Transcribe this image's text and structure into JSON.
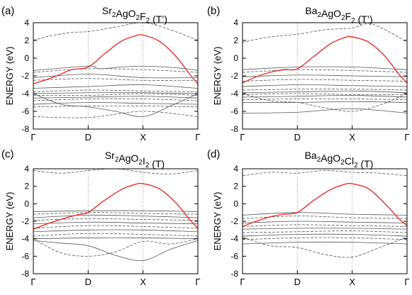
{
  "figure": {
    "panels": [
      {
        "tag": "(a)",
        "title": {
          "base1": "Sr",
          "sub1": "2",
          "base2": "AgO",
          "sub2": "2",
          "base3": "F",
          "sub3": "2",
          "suffix": " (T’)"
        }
      },
      {
        "tag": "(b)",
        "title": {
          "base1": "Ba",
          "sub1": "2",
          "base2": "AgO",
          "sub2": "2",
          "base3": "F",
          "sub3": "2",
          "suffix": " (T’)"
        }
      },
      {
        "tag": "(c)",
        "title": {
          "base1": "Sr",
          "sub1": "2",
          "base2": "AgO",
          "sub2": "2",
          "base3": "I",
          "sub3": "2",
          "suffix": " (T)"
        }
      },
      {
        "tag": "(d)",
        "title": {
          "base1": "Ba",
          "sub1": "2",
          "base2": "AgO",
          "sub2": "2",
          "base3": "Cl",
          "sub3": "2",
          "suffix": " (T)"
        }
      }
    ]
  },
  "colors": {
    "highlight_band": "#e8312a",
    "other_bands": "#555555",
    "axis": "#000000",
    "kpoint_line": "#9a9a9a"
  },
  "chart_data": [
    {
      "type": "line",
      "title": "Sr2AgO2F2 (T’)",
      "ylabel": "ENERGY (eV)",
      "ylim": [
        -8,
        4
      ],
      "yticks": [
        -8,
        -6,
        -4,
        -2,
        0,
        2,
        4
      ],
      "xticks": [
        "Γ",
        "D",
        "X",
        "Γ"
      ],
      "highlight_band": {
        "x": [
          0,
          0.25,
          0.5,
          0.7,
          1,
          1.3,
          1.6,
          1.85,
          2,
          2.3,
          2.6,
          2.85,
          3
        ],
        "y": [
          -2.9,
          -2.4,
          -1.8,
          -1.3,
          -1.0,
          0.5,
          1.9,
          2.5,
          2.6,
          1.9,
          0.2,
          -1.8,
          -2.9
        ]
      },
      "bands": [
        {
          "x": [
            0,
            0.3,
            0.7,
            1,
            1.5,
            2,
            2.5,
            3
          ],
          "y": [
            2.0,
            2.5,
            2.9,
            3.0,
            3.5,
            4.0,
            3.2,
            2.0
          ]
        },
        {
          "x": [
            0,
            1,
            1.2,
            1.6,
            2,
            2.4,
            2.8,
            3
          ],
          "y": [
            -1.4,
            -0.9,
            -1.2,
            -1.0,
            -0.9,
            -1.0,
            -1.2,
            -1.4
          ]
        },
        {
          "x": [
            0,
            1,
            2,
            3
          ],
          "y": [
            -1.6,
            -1.2,
            -1.3,
            -1.6
          ]
        },
        {
          "x": [
            0,
            1,
            2,
            3
          ],
          "y": [
            -2.2,
            -1.8,
            -2.2,
            -2.2
          ]
        },
        {
          "x": [
            0,
            1,
            2,
            3
          ],
          "y": [
            -2.5,
            -2.3,
            -2.5,
            -2.5
          ]
        },
        {
          "x": [
            0,
            1,
            2,
            3
          ],
          "y": [
            -3.4,
            -3.2,
            -3.0,
            -3.4
          ]
        },
        {
          "x": [
            0,
            1,
            2,
            3
          ],
          "y": [
            -3.8,
            -3.6,
            -3.7,
            -3.8
          ]
        },
        {
          "x": [
            0,
            1,
            2,
            3
          ],
          "y": [
            -4.0,
            -3.9,
            -3.9,
            -4.0
          ]
        },
        {
          "x": [
            0,
            1,
            2,
            3
          ],
          "y": [
            -4.2,
            -4.2,
            -4.0,
            -4.2
          ]
        },
        {
          "x": [
            0,
            1,
            2,
            3
          ],
          "y": [
            -4.5,
            -4.4,
            -4.3,
            -4.5
          ]
        },
        {
          "x": [
            0,
            1,
            2,
            3
          ],
          "y": [
            -4.8,
            -4.6,
            -4.6,
            -4.8
          ]
        },
        {
          "x": [
            0,
            1,
            2,
            3
          ],
          "y": [
            -5.2,
            -5.0,
            -5.1,
            -5.2
          ]
        },
        {
          "x": [
            0,
            1,
            2,
            3
          ],
          "y": [
            -5.5,
            -5.4,
            -5.4,
            -5.5
          ]
        },
        {
          "x": [
            0,
            0.5,
            1,
            1.5,
            2,
            2.5,
            3
          ],
          "y": [
            -4.0,
            -5.2,
            -5.5,
            -6.0,
            -6.6,
            -5.4,
            -4.0
          ]
        },
        {
          "x": [
            0,
            1,
            2,
            3
          ],
          "y": [
            -6.6,
            -6.7,
            -6.0,
            -6.6
          ]
        }
      ]
    },
    {
      "type": "line",
      "title": "Ba2AgO2F2 (T’)",
      "ylabel": "ENERGY (eV)",
      "ylim": [
        -8,
        4
      ],
      "yticks": [
        -8,
        -6,
        -4,
        -2,
        0,
        2,
        4
      ],
      "xticks": [
        "Γ",
        "D",
        "X",
        "Γ"
      ],
      "highlight_band": {
        "x": [
          0,
          0.25,
          0.5,
          0.75,
          1,
          1.3,
          1.6,
          1.85,
          2,
          2.3,
          2.6,
          2.85,
          3
        ],
        "y": [
          -2.8,
          -2.1,
          -1.6,
          -1.3,
          -1.2,
          0.2,
          1.6,
          2.3,
          2.4,
          1.8,
          0.2,
          -1.8,
          -2.8
        ]
      },
      "bands": [
        {
          "x": [
            0,
            0.5,
            1,
            1.5,
            2,
            2.3,
            2.6,
            3
          ],
          "y": [
            1.8,
            2.4,
            2.7,
            3.2,
            3.4,
            3.9,
            3.2,
            1.8
          ]
        },
        {
          "x": [
            0,
            1,
            2,
            3
          ],
          "y": [
            -1.3,
            -1.0,
            -1.0,
            -1.3
          ]
        },
        {
          "x": [
            0,
            1,
            2,
            3
          ],
          "y": [
            -1.6,
            -1.3,
            -1.4,
            -1.6
          ]
        },
        {
          "x": [
            0,
            1,
            2,
            3
          ],
          "y": [
            -2.1,
            -1.9,
            -2.0,
            -2.1
          ]
        },
        {
          "x": [
            0,
            1,
            2,
            3
          ],
          "y": [
            -2.6,
            -2.4,
            -2.5,
            -2.6
          ]
        },
        {
          "x": [
            0,
            1,
            2,
            3
          ],
          "y": [
            -3.2,
            -3.0,
            -3.1,
            -3.2
          ]
        },
        {
          "x": [
            0,
            1,
            2,
            3
          ],
          "y": [
            -3.6,
            -3.5,
            -3.5,
            -3.6
          ]
        },
        {
          "x": [
            0,
            1,
            2,
            3
          ],
          "y": [
            -3.9,
            -3.8,
            -3.7,
            -3.9
          ]
        },
        {
          "x": [
            0,
            1,
            2,
            3
          ],
          "y": [
            -4.1,
            -4.0,
            -4.1,
            -4.1
          ]
        },
        {
          "x": [
            0,
            1,
            2,
            3
          ],
          "y": [
            -4.4,
            -4.3,
            -4.2,
            -4.4
          ]
        },
        {
          "x": [
            0,
            1,
            2,
            3
          ],
          "y": [
            -4.7,
            -4.6,
            -4.6,
            -4.7
          ]
        },
        {
          "x": [
            0,
            1,
            2,
            3
          ],
          "y": [
            -5.0,
            -5.0,
            -4.9,
            -5.0
          ]
        },
        {
          "x": [
            0,
            0.5,
            1,
            1.5,
            2,
            2.5,
            3
          ],
          "y": [
            -4.0,
            -4.8,
            -5.0,
            -5.6,
            -6.0,
            -5.3,
            -4.0
          ]
        },
        {
          "x": [
            0,
            1,
            2,
            3
          ],
          "y": [
            -6.2,
            -6.1,
            -5.7,
            -6.2
          ]
        }
      ]
    },
    {
      "type": "line",
      "title": "Sr2AgO2I2 (T)",
      "ylabel": "ENERGY (eV)",
      "ylim": [
        -8,
        4
      ],
      "yticks": [
        -8,
        -6,
        -4,
        -2,
        0,
        2,
        4
      ],
      "xticks": [
        "Γ",
        "D",
        "X",
        "Γ"
      ],
      "highlight_band": {
        "x": [
          0,
          0.3,
          0.6,
          0.85,
          1,
          1.3,
          1.6,
          1.85,
          2,
          2.3,
          2.6,
          2.85,
          3
        ],
        "y": [
          -2.9,
          -2.2,
          -1.6,
          -1.2,
          -1.0,
          0.4,
          1.6,
          2.2,
          2.3,
          1.7,
          0.1,
          -1.8,
          -2.8
        ]
      },
      "bands": [
        {
          "x": [
            0,
            0.5,
            1,
            1.5,
            2,
            2.5,
            3
          ],
          "y": [
            3.8,
            3.5,
            3.8,
            4.0,
            3.6,
            3.4,
            3.8
          ]
        },
        {
          "x": [
            0,
            1,
            2,
            3
          ],
          "y": [
            -0.9,
            -0.8,
            -0.8,
            -0.9
          ]
        },
        {
          "x": [
            0,
            1,
            2,
            3
          ],
          "y": [
            -1.2,
            -1.0,
            -1.1,
            -1.2
          ]
        },
        {
          "x": [
            0,
            1,
            2,
            3
          ],
          "y": [
            -1.6,
            -1.3,
            -1.4,
            -1.6
          ]
        },
        {
          "x": [
            0,
            1,
            2,
            3
          ],
          "y": [
            -1.9,
            -1.7,
            -1.8,
            -1.9
          ]
        },
        {
          "x": [
            0,
            1,
            2,
            3
          ],
          "y": [
            -2.3,
            -2.1,
            -2.2,
            -2.3
          ]
        },
        {
          "x": [
            0,
            1,
            2,
            3
          ],
          "y": [
            -2.8,
            -2.5,
            -2.6,
            -2.8
          ]
        },
        {
          "x": [
            0,
            1,
            2,
            3
          ],
          "y": [
            -3.2,
            -3.0,
            -3.0,
            -3.2
          ]
        },
        {
          "x": [
            0,
            1,
            2,
            3
          ],
          "y": [
            -3.7,
            -3.4,
            -3.5,
            -3.7
          ]
        },
        {
          "x": [
            0,
            1,
            2,
            3
          ],
          "y": [
            -4.0,
            -3.9,
            -3.9,
            -4.0
          ]
        },
        {
          "x": [
            0,
            0.5,
            1,
            1.5,
            2,
            2.5,
            3
          ],
          "y": [
            -4.0,
            -5.6,
            -6.0,
            -5.5,
            -4.3,
            -4.6,
            -4.0
          ]
        },
        {
          "x": [
            0,
            0.5,
            1,
            1.5,
            2,
            2.5,
            3
          ],
          "y": [
            -4.2,
            -4.5,
            -4.8,
            -5.9,
            -6.5,
            -5.2,
            -4.2
          ]
        }
      ]
    },
    {
      "type": "line",
      "title": "Ba2AgO2Cl2 (T)",
      "ylabel": "ENERGY (eV)",
      "ylim": [
        -8,
        4
      ],
      "yticks": [
        -8,
        -6,
        -4,
        -2,
        0,
        2,
        4
      ],
      "xticks": [
        "Γ",
        "D",
        "X",
        "Γ"
      ],
      "highlight_band": {
        "x": [
          0,
          0.25,
          0.5,
          0.75,
          1,
          1.3,
          1.6,
          1.85,
          2,
          2.3,
          2.6,
          2.85,
          3
        ],
        "y": [
          -2.6,
          -2.0,
          -1.5,
          -1.2,
          -1.0,
          0.4,
          1.6,
          2.2,
          2.3,
          1.7,
          0.0,
          -1.7,
          -2.5
        ]
      },
      "bands": [
        {
          "x": [
            0,
            0.5,
            1,
            1.5,
            2,
            2.5,
            3
          ],
          "y": [
            3.2,
            3.6,
            3.5,
            3.8,
            3.6,
            3.5,
            3.2
          ]
        },
        {
          "x": [
            0,
            1,
            2,
            3
          ],
          "y": [
            -1.3,
            -1.0,
            -1.2,
            -1.3
          ]
        },
        {
          "x": [
            0,
            1,
            2,
            3
          ],
          "y": [
            -1.7,
            -1.4,
            -1.6,
            -1.7
          ]
        },
        {
          "x": [
            0,
            1,
            2,
            3
          ],
          "y": [
            -2.2,
            -2.0,
            -2.1,
            -2.2
          ]
        },
        {
          "x": [
            0,
            1,
            2,
            3
          ],
          "y": [
            -2.6,
            -2.4,
            -2.5,
            -2.6
          ]
        },
        {
          "x": [
            0,
            1,
            2,
            3
          ],
          "y": [
            -2.9,
            -2.8,
            -2.8,
            -2.9
          ]
        },
        {
          "x": [
            0,
            1,
            2,
            3
          ],
          "y": [
            -3.3,
            -3.2,
            -3.1,
            -3.3
          ]
        },
        {
          "x": [
            0,
            1,
            2,
            3
          ],
          "y": [
            -3.7,
            -3.5,
            -3.5,
            -3.7
          ]
        },
        {
          "x": [
            0,
            1,
            2,
            3
          ],
          "y": [
            -4.1,
            -3.9,
            -3.9,
            -4.1
          ]
        },
        {
          "x": [
            0,
            1,
            2,
            3
          ],
          "y": [
            -4.6,
            -4.4,
            -4.4,
            -4.6
          ]
        },
        {
          "x": [
            0,
            0.5,
            1,
            1.5,
            2,
            2.5,
            3
          ],
          "y": [
            -3.8,
            -4.8,
            -5.0,
            -5.8,
            -6.1,
            -5.0,
            -3.8
          ]
        }
      ]
    }
  ]
}
